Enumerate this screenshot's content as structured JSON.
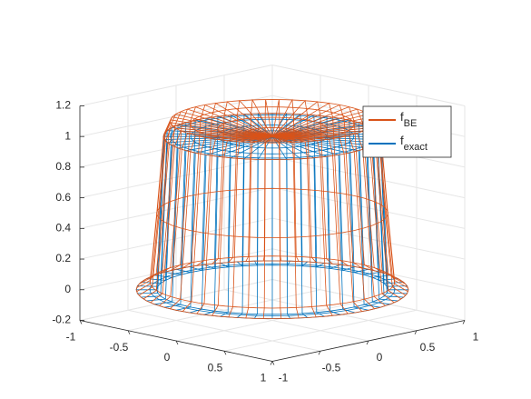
{
  "chart_data": {
    "type": "mesh3d",
    "xlim": [
      -1,
      1
    ],
    "xticks": [
      -1,
      -0.5,
      0,
      0.5,
      1
    ],
    "ylim": [
      -1,
      1
    ],
    "yticks": [
      -1,
      -0.5,
      0,
      0.5,
      1
    ],
    "zlim": [
      -0.2,
      1.2
    ],
    "zticks": [
      -0.2,
      0,
      0.2,
      0.4,
      0.6,
      0.8,
      1,
      1.2
    ],
    "grid": true,
    "legend": "upper right",
    "r": [
      0,
      0.2,
      0.4,
      0.6,
      0.75,
      0.8,
      0.85,
      0.9,
      1.0
    ],
    "series": [
      {
        "name": "f",
        "subscript": "exact",
        "color": "#0072bd",
        "values": [
          1,
          1,
          1,
          1,
          1,
          1,
          0,
          0,
          0
        ]
      },
      {
        "name": "f",
        "subscript": "BE",
        "color": "#d95319",
        "values": [
          1.0,
          1.02,
          1.05,
          1.08,
          1.1,
          1.0,
          0.5,
          0.05,
          0
        ]
      }
    ]
  }
}
